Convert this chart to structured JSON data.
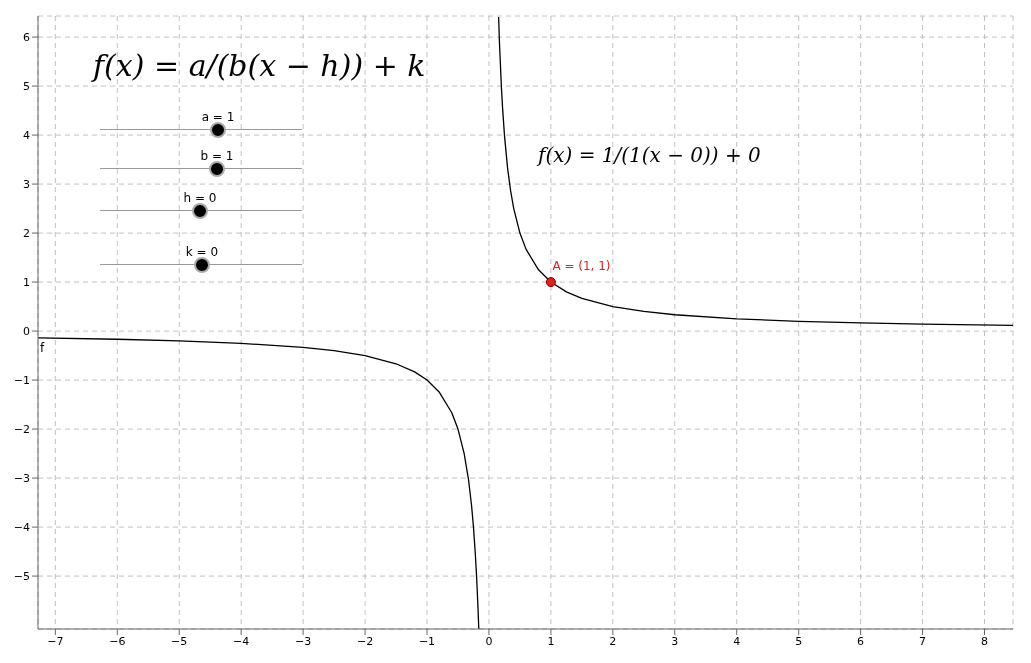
{
  "chart_data": {
    "type": "line",
    "xlim": [
      -7.28,
      8.46
    ],
    "ylim": [
      -6.08,
      6.43
    ],
    "xticks": [
      -7,
      -6,
      -5,
      -4,
      -3,
      -2,
      -1,
      0,
      1,
      2,
      3,
      4,
      5,
      6,
      7,
      8
    ],
    "yticks": [
      -5,
      -4,
      -3,
      -2,
      -1,
      0,
      1,
      2,
      3,
      4,
      5,
      6
    ],
    "grid": true,
    "legend": false,
    "line_style": "solid",
    "annotations": [
      "f(x) = a/(b(x − h)) + k",
      "a = 1",
      "b = 1",
      "h = 0",
      "k = 0",
      "f(x) = 1/(1(x − 0)) + 0"
    ],
    "series": [
      {
        "name": "f",
        "color": "#000000",
        "marker": "none",
        "x": [
          -7.28,
          -6,
          -5,
          -4,
          -3,
          -2.5,
          -2,
          -1.5,
          -1.2,
          -1,
          -0.8,
          -0.6,
          -0.5,
          -0.4,
          -0.33,
          -0.28,
          -0.25,
          -0.22,
          -0.2,
          -0.18,
          -0.164,
          0,
          0.156,
          0.17,
          0.2,
          0.22,
          0.25,
          0.3,
          0.35,
          0.4,
          0.5,
          0.6,
          0.8,
          1,
          1.25,
          1.5,
          2,
          2.5,
          3,
          4,
          5,
          6,
          7,
          8.46
        ],
        "values": [
          -0.137,
          -0.167,
          -0.2,
          -0.25,
          -0.333,
          -0.4,
          -0.5,
          -0.667,
          -0.833,
          -1,
          -1.25,
          -1.667,
          -2,
          -2.5,
          -3.03,
          -3.57,
          -4,
          -4.55,
          -5,
          -5.56,
          -6.08,
          null,
          6.41,
          5.88,
          5,
          4.55,
          4,
          3.33,
          2.86,
          2.5,
          2,
          1.667,
          1.25,
          1,
          0.8,
          0.667,
          0.5,
          0.4,
          0.333,
          0.25,
          0.2,
          0.167,
          0.143,
          0.118
        ]
      },
      {
        "name": "A = (1, 1)",
        "type": "scatter",
        "color": "#e0201b",
        "marker": "circle",
        "x": [
          1
        ],
        "values": [
          1
        ]
      }
    ]
  }
}
